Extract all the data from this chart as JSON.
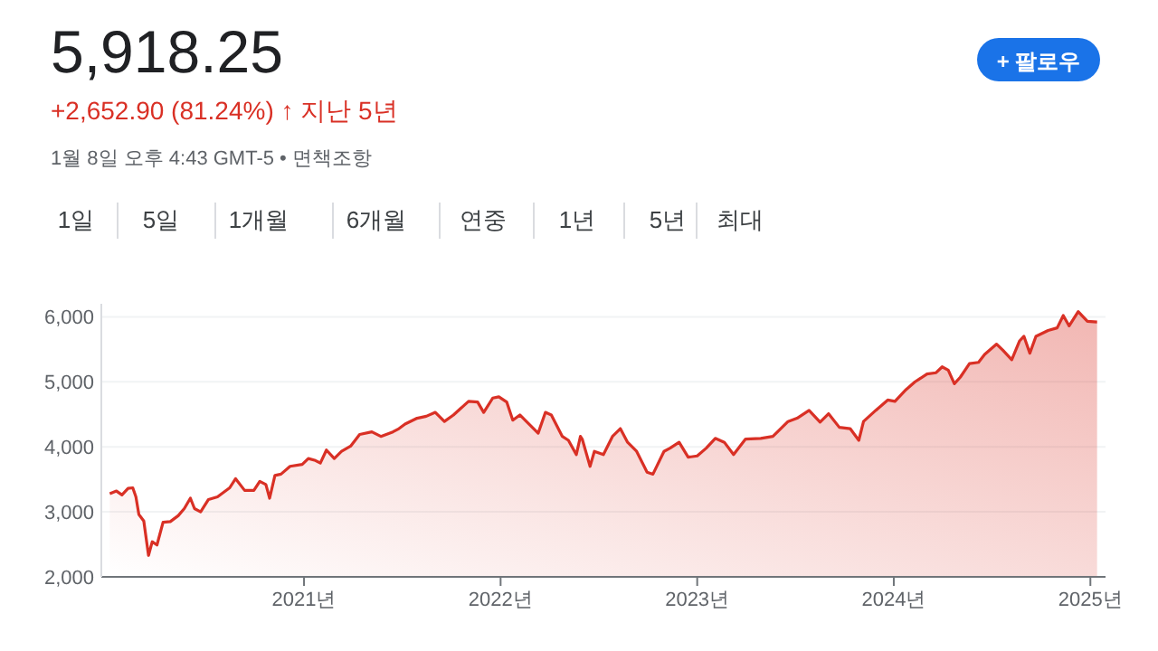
{
  "chart_data": {
    "type": "area",
    "title": "5,918.25",
    "subtitle": "+2,652.90 (81.24%) ↑ 지난 5년",
    "annotations": [
      "1월 8일 오후 4:43 GMT-5 • 면책조항",
      "+ 팔로우",
      "1일",
      "5일",
      "1개월",
      "6개월",
      "연중",
      "1년",
      "5년",
      "최대"
    ],
    "series": [
      {
        "color": "#d93025",
        "x": [
          2020.012,
          2020.046,
          2020.074,
          2020.105,
          2020.129,
          2020.145,
          2020.16,
          2020.185,
          2020.209,
          2020.228,
          2020.252,
          2020.283,
          2020.32,
          2020.36,
          2020.391,
          2020.422,
          2020.443,
          2020.474,
          2020.514,
          2020.56,
          2020.622,
          2020.652,
          2020.698,
          2020.745,
          2020.775,
          2020.806,
          2020.825,
          2020.852,
          2020.883,
          2020.929,
          2020.991,
          2021.022,
          2021.058,
          2021.083,
          2021.114,
          2021.154,
          2021.191,
          2021.237,
          2021.283,
          2021.345,
          2021.391,
          2021.452,
          2021.483,
          2021.514,
          2021.575,
          2021.622,
          2021.668,
          2021.714,
          2021.76,
          2021.837,
          2021.883,
          2021.914,
          2021.96,
          2021.991,
          2022.031,
          2022.062,
          2022.098,
          2022.145,
          2022.191,
          2022.228,
          2022.258,
          2022.314,
          2022.345,
          2022.385,
          2022.406,
          2022.415,
          2022.455,
          2022.477,
          2022.523,
          2022.569,
          2022.609,
          2022.646,
          2022.692,
          2022.745,
          2022.775,
          2022.831,
          2022.862,
          2022.908,
          2022.954,
          2023.0,
          2023.046,
          2023.092,
          2023.138,
          2023.185,
          2023.246,
          2023.323,
          2023.385,
          2023.462,
          2023.508,
          2023.569,
          2023.625,
          2023.668,
          2023.723,
          2023.778,
          2023.822,
          2023.846,
          2023.908,
          2023.969,
          2024.006,
          2024.062,
          2024.108,
          2024.169,
          2024.215,
          2024.246,
          2024.277,
          2024.308,
          2024.338,
          2024.385,
          2024.431,
          2024.462,
          2024.523,
          2024.554,
          2024.6,
          2024.64,
          2024.662,
          2024.692,
          2024.723,
          2024.785,
          2024.831,
          2024.862,
          2024.892,
          2024.938,
          2024.985,
          2025.034
        ],
        "values": [
          3280,
          3320,
          3260,
          3360,
          3370,
          3230,
          2960,
          2860,
          2330,
          2540,
          2490,
          2840,
          2850,
          2940,
          3050,
          3210,
          3050,
          3000,
          3190,
          3230,
          3370,
          3510,
          3330,
          3330,
          3470,
          3420,
          3210,
          3560,
          3580,
          3700,
          3730,
          3820,
          3790,
          3750,
          3950,
          3820,
          3930,
          4010,
          4190,
          4230,
          4160,
          4230,
          4280,
          4350,
          4440,
          4470,
          4530,
          4390,
          4490,
          4700,
          4690,
          4530,
          4750,
          4770,
          4690,
          4410,
          4490,
          4350,
          4210,
          4530,
          4490,
          4160,
          4100,
          3880,
          4160,
          4120,
          3700,
          3930,
          3880,
          4160,
          4280,
          4070,
          3930,
          3610,
          3580,
          3930,
          3980,
          4070,
          3840,
          3860,
          3980,
          4130,
          4070,
          3880,
          4120,
          4130,
          4160,
          4390,
          4440,
          4560,
          4380,
          4510,
          4300,
          4280,
          4100,
          4390,
          4560,
          4720,
          4700,
          4880,
          5000,
          5120,
          5140,
          5230,
          5180,
          4970,
          5070,
          5280,
          5300,
          5420,
          5580,
          5490,
          5340,
          5630,
          5700,
          5440,
          5700,
          5790,
          5830,
          6020,
          5860,
          6080,
          5930,
          5920
        ]
      }
    ],
    "xlim": [
      2019.969,
      2025.077
    ],
    "xticks": [
      {
        "value": 2021,
        "label": "2021년"
      },
      {
        "value": 2022,
        "label": "2022년"
      },
      {
        "value": 2023,
        "label": "2023년"
      },
      {
        "value": 2024,
        "label": "2024년"
      },
      {
        "value": 2025,
        "label": "2025년"
      }
    ],
    "ylim": [
      2000,
      6200
    ],
    "yticks": [
      {
        "value": 2000,
        "label": "2,000"
      },
      {
        "value": 3000,
        "label": "3,000"
      },
      {
        "value": 4000,
        "label": "4,000"
      },
      {
        "value": 5000,
        "label": "5,000"
      },
      {
        "value": 6000,
        "label": "6,000"
      }
    ],
    "grid": "y"
  }
}
